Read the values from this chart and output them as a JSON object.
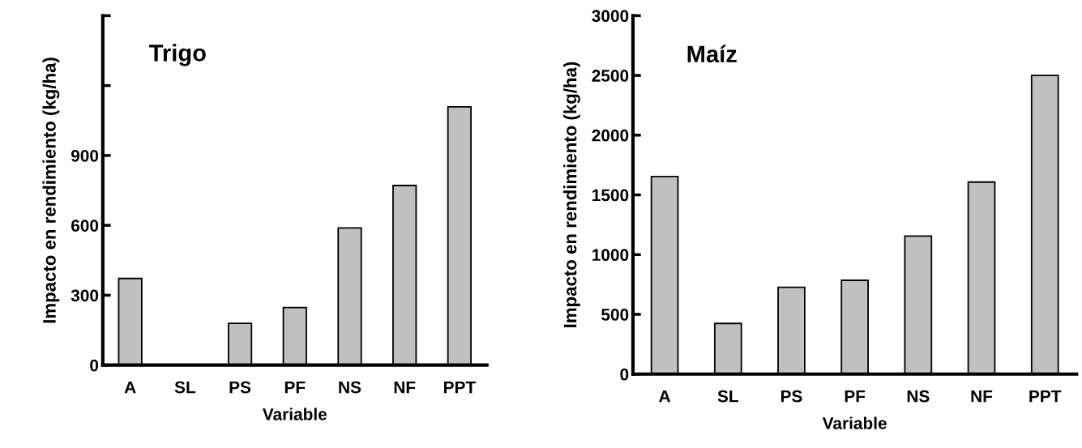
{
  "chart_data": [
    {
      "type": "bar",
      "title": "Trigo",
      "xlabel": "Variable",
      "ylabel": "Impacto en rendimiento (kg/ha)",
      "categories": [
        "A",
        "SL",
        "PS",
        "PF",
        "NS",
        "NF",
        "PPT"
      ],
      "values": [
        372,
        null,
        179,
        247,
        589,
        771,
        1109
      ],
      "color": "#c0c0c0",
      "ylim": [
        0,
        1500
      ],
      "yticks": [
        0,
        300,
        600,
        900,
        {
          "value": 1200,
          "label": null
        },
        {
          "value": 1500,
          "label": null
        }
      ],
      "grid": false,
      "legend": false
    },
    {
      "type": "bar",
      "title": "Maíz",
      "xlabel": "Variable",
      "ylabel": "Impacto en rendimiento (kg/ha)",
      "categories": [
        "A",
        "SL",
        "PS",
        "PF",
        "NS",
        "NF",
        "PPT"
      ],
      "values": [
        1654,
        424,
        726,
        785,
        1156,
        1607,
        2500
      ],
      "color": "#c0c0c0",
      "ylim": [
        0,
        3000
      ],
      "yticks": [
        0,
        500,
        1000,
        1500,
        2000,
        2500,
        3000
      ],
      "grid": false,
      "legend": false
    }
  ]
}
